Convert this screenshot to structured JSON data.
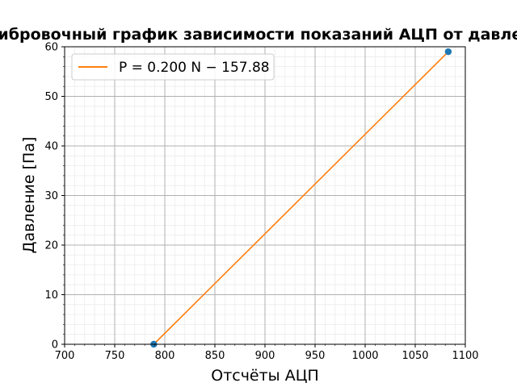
{
  "chart_data": {
    "type": "scatter",
    "title": "Калибровочный график зависимости показаний АЦП от давления",
    "xlabel": "Отсчёты АЦП",
    "ylabel": "Давление [Па]",
    "xlim": [
      700,
      1100
    ],
    "ylim": [
      0,
      60
    ],
    "xticks": [
      700,
      750,
      800,
      850,
      900,
      950,
      1000,
      1050,
      1100
    ],
    "yticks": [
      0,
      10,
      20,
      30,
      40,
      50,
      60
    ],
    "grid": true,
    "minor_grid": true,
    "legend_position": "upper-left",
    "series": [
      {
        "kind": "scatter",
        "color": "#1f77b4",
        "points": [
          {
            "x": 789,
            "y": 0
          },
          {
            "x": 1083,
            "y": 59
          }
        ]
      },
      {
        "kind": "line",
        "name": "P = 0.200 N − 157.88",
        "color": "#ff7f0e",
        "points": [
          {
            "x": 789,
            "y": 0
          },
          {
            "x": 1083,
            "y": 59
          }
        ]
      }
    ]
  }
}
